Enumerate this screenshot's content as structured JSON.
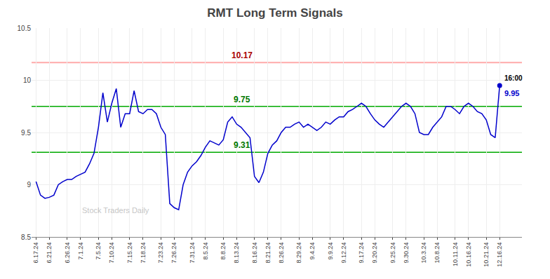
{
  "chart_data": {
    "type": "line",
    "title": "RMT Long Term Signals",
    "categories": [
      "6.17.24",
      null,
      null,
      "6.21.24",
      null,
      null,
      null,
      "6.26.24",
      null,
      null,
      "7.1.24",
      null,
      null,
      null,
      "7.5.24",
      null,
      null,
      "7.10.24",
      null,
      null,
      null,
      "7.15.24",
      null,
      null,
      "7.18.24",
      null,
      null,
      null,
      "7.23.24",
      null,
      null,
      "7.26.24",
      null,
      null,
      null,
      "7.31.24",
      null,
      null,
      "8.5.24",
      null,
      null,
      null,
      "8.8.24",
      null,
      null,
      "8.13.24",
      null,
      null,
      null,
      "8.16.24",
      null,
      null,
      "8.21.24",
      null,
      null,
      "8.26.24",
      null,
      null,
      null,
      "8.29.24",
      null,
      null,
      "9.4.24",
      null,
      null,
      null,
      "9.9.24",
      null,
      null,
      "9.12.24",
      null,
      null,
      null,
      "9.17.24",
      null,
      null,
      "9.20.24",
      null,
      null,
      null,
      "9.25.24",
      null,
      null,
      "9.30.24",
      null,
      null,
      null,
      "10.3.24",
      null,
      null,
      "10.8.24",
      null,
      null,
      null,
      "10.11.24",
      null,
      null,
      "10.16.24",
      null,
      null,
      null,
      "10.21.24",
      null,
      null,
      "12.16.24"
    ],
    "values": [
      9.03,
      8.9,
      8.87,
      8.88,
      8.9,
      9.0,
      9.03,
      9.05,
      9.05,
      9.08,
      9.1,
      9.12,
      9.2,
      9.3,
      9.55,
      9.88,
      9.6,
      9.78,
      9.92,
      9.55,
      9.68,
      9.68,
      9.9,
      9.7,
      9.68,
      9.72,
      9.72,
      9.68,
      9.55,
      9.48,
      8.82,
      8.78,
      8.76,
      9.0,
      9.12,
      9.18,
      9.22,
      9.28,
      9.36,
      9.42,
      9.4,
      9.38,
      9.43,
      9.6,
      9.65,
      9.58,
      9.55,
      9.5,
      9.45,
      9.08,
      9.02,
      9.12,
      9.3,
      9.38,
      9.42,
      9.5,
      9.55,
      9.55,
      9.58,
      9.6,
      9.55,
      9.58,
      9.55,
      9.52,
      9.55,
      9.6,
      9.58,
      9.62,
      9.65,
      9.65,
      9.7,
      9.72,
      9.75,
      9.78,
      9.75,
      9.68,
      9.62,
      9.58,
      9.55,
      9.6,
      9.65,
      9.7,
      9.75,
      9.78,
      9.75,
      9.68,
      9.5,
      9.48,
      9.48,
      9.55,
      9.6,
      9.65,
      9.75,
      9.75,
      9.72,
      9.68,
      9.75,
      9.78,
      9.75,
      9.7,
      9.68,
      9.62,
      9.48,
      9.45,
      9.95
    ],
    "color": "#0000cc",
    "ylim": [
      8.5,
      10.5
    ],
    "yticks": [
      8.5,
      9.0,
      9.5,
      10.0,
      10.5
    ],
    "grid": true,
    "reference_lines": [
      {
        "value": 10.17,
        "label": "10.17",
        "color": "#ffaaaa",
        "label_color": "#aa0000"
      },
      {
        "value": 9.75,
        "label": "9.75",
        "color": "#00aa00",
        "label_color": "#007700"
      },
      {
        "value": 9.31,
        "label": "9.31",
        "color": "#00aa00",
        "label_color": "#007700"
      }
    ],
    "last_point": {
      "time_label": "16:00",
      "value_label": "9.95"
    },
    "watermark": "Stock Traders Daily"
  }
}
